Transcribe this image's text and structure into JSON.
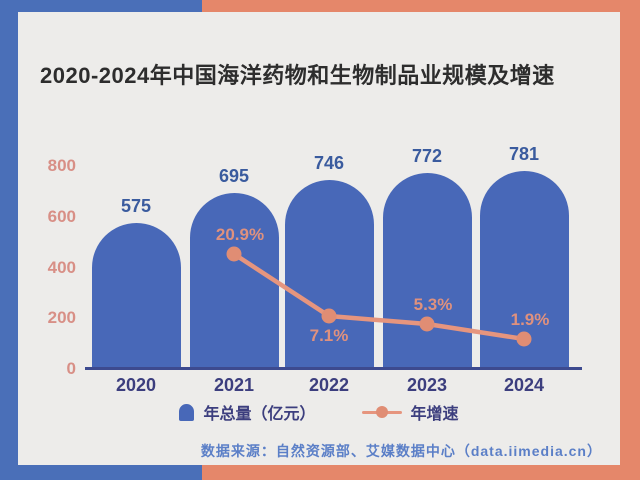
{
  "page": {
    "title": "2020-2024年中国海洋药物和生物制品业规模及增速",
    "source": "数据来源：自然资源部、艾媒数据中心（data.iimedia.cn）"
  },
  "legend": {
    "bar_label": "年总量（亿元）",
    "line_label": "年增速"
  },
  "colors": {
    "bg_left": "#4a6fb8",
    "bg_right": "#e5876a",
    "card": "#edecea",
    "title_text": "#2d2d2d",
    "bar": "#4868b8",
    "bar_label": "#3a5b9e",
    "axis_line": "#3d4a8f",
    "y_tick": "#d88f86",
    "x_tick": "#3c3e7e",
    "line": "#e6957e",
    "point": "#e08d74",
    "pct_label": "#df917e",
    "legend_text": "#3c3e7e",
    "source_text": "#5b7fc7"
  },
  "chart_data": {
    "type": "bar",
    "title": "2020-2024年中国海洋药物和生物制品业规模及增速",
    "categories": [
      "2020",
      "2021",
      "2022",
      "2023",
      "2024"
    ],
    "series": [
      {
        "name": "年总量（亿元）",
        "type": "bar",
        "values": [
          575,
          695,
          746,
          772,
          781
        ]
      },
      {
        "name": "年增速",
        "type": "line",
        "unit": "%",
        "values": [
          null,
          20.9,
          7.1,
          5.3,
          1.9
        ],
        "label_positions": [
          null,
          "above",
          "below",
          "above",
          "above"
        ]
      }
    ],
    "xlabel": "",
    "ylabel": "",
    "ylim": [
      0,
      800
    ],
    "y_ticks": [
      0,
      200,
      400,
      600,
      800
    ],
    "grid": false,
    "legend_position": "bottom",
    "source": "数据来源：自然资源部、艾媒数据中心（data.iimedia.cn）"
  }
}
